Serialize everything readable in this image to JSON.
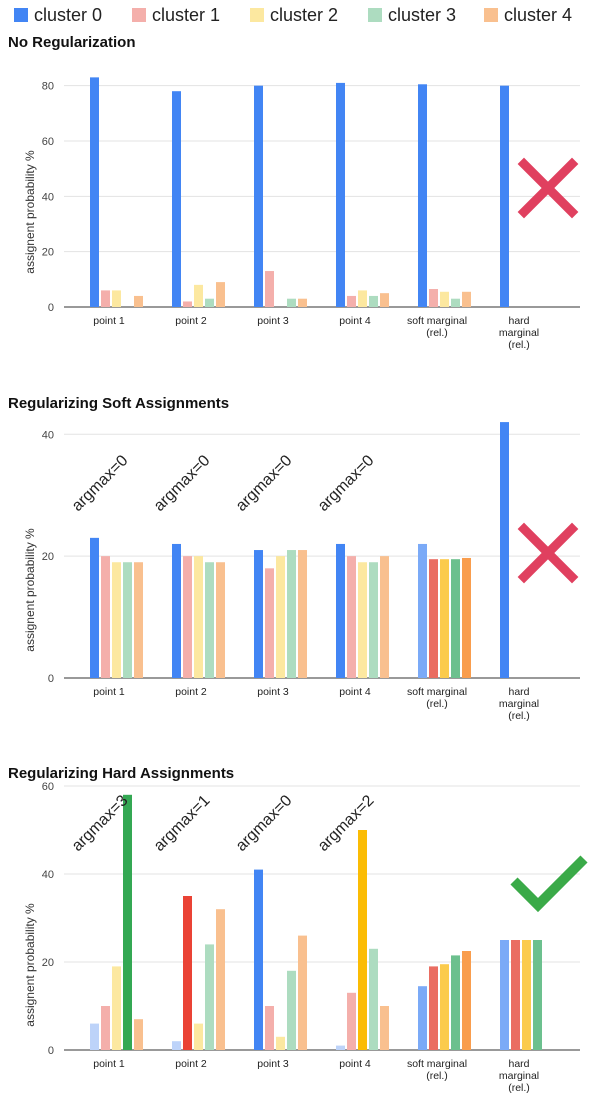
{
  "legend": [
    {
      "name": "cluster 0",
      "color": "#4285F4"
    },
    {
      "name": "cluster 1",
      "color": "#F4AFAB"
    },
    {
      "name": "cluster 2",
      "color": "#FCE8A0"
    },
    {
      "name": "cluster 3",
      "color": "#ADDCC0"
    },
    {
      "name": "cluster 4",
      "color": "#F9C08F"
    }
  ],
  "chart_data": [
    {
      "type": "bar",
      "title": "No Regularization",
      "ylabel": "assignent probability %",
      "ylim": [
        0,
        90
      ],
      "yticks": [
        0,
        20,
        40,
        60,
        80
      ],
      "categories": [
        [
          "point 1"
        ],
        [
          "point 2"
        ],
        [
          "point 3"
        ],
        [
          "point 4"
        ],
        [
          "soft marginal",
          "(rel.)"
        ],
        [
          "hard",
          "marginal",
          "(rel.)"
        ]
      ],
      "series": [
        {
          "name": "cluster 0",
          "values": [
            83,
            78,
            80,
            81,
            80.5,
            80
          ]
        },
        {
          "name": "cluster 1",
          "values": [
            6,
            2,
            13,
            4,
            6.5,
            0
          ]
        },
        {
          "name": "cluster 2",
          "values": [
            6,
            8,
            0,
            6,
            5.5,
            0
          ]
        },
        {
          "name": "cluster 3",
          "values": [
            0,
            3,
            3,
            4,
            3,
            0
          ]
        },
        {
          "name": "cluster 4",
          "values": [
            4,
            9,
            3,
            5,
            5.5,
            0
          ]
        }
      ],
      "colors": [
        [
          "#4285F4",
          "#F4AFAB",
          "#FCE8A0",
          "#ADDCC0",
          "#F9C08F"
        ],
        [
          "#4285F4",
          "#F4AFAB",
          "#FCE8A0",
          "#ADDCC0",
          "#F9C08F"
        ],
        [
          "#4285F4",
          "#F4AFAB",
          "#FCE8A0",
          "#ADDCC0",
          "#F9C08F"
        ],
        [
          "#4285F4",
          "#F4AFAB",
          "#FCE8A0",
          "#ADDCC0",
          "#F9C08F"
        ],
        [
          "#4285F4",
          "#F4AFAB",
          "#FCE8A0",
          "#ADDCC0",
          "#F9C08F"
        ],
        [
          "#4285F4",
          "#F4AFAB",
          "#FCE8A0",
          "#ADDCC0",
          "#F9C08F"
        ]
      ],
      "annotations": [],
      "marker": {
        "type": "cross",
        "color": "#E0405F"
      }
    },
    {
      "type": "bar",
      "title": "Regularizing Soft Assignments",
      "ylabel": "assignent probability %",
      "ylim": [
        0,
        43
      ],
      "yticks": [
        0,
        20,
        40
      ],
      "categories": [
        [
          "point 1"
        ],
        [
          "point 2"
        ],
        [
          "point 3"
        ],
        [
          "point 4"
        ],
        [
          "soft marginal",
          "(rel.)"
        ],
        [
          "hard",
          "marginal",
          "(rel.)"
        ]
      ],
      "series": [
        {
          "name": "cluster 0",
          "values": [
            23,
            22,
            21,
            22,
            22,
            42
          ]
        },
        {
          "name": "cluster 1",
          "values": [
            20,
            20,
            18,
            20,
            19.5,
            0
          ]
        },
        {
          "name": "cluster 2",
          "values": [
            19,
            20,
            20,
            19,
            19.5,
            0
          ]
        },
        {
          "name": "cluster 3",
          "values": [
            19,
            19,
            21,
            19,
            19.5,
            0
          ]
        },
        {
          "name": "cluster 4",
          "values": [
            19,
            19,
            21,
            20,
            19.7,
            0
          ]
        }
      ],
      "colors": [
        [
          "#4285F4",
          "#F4AFAB",
          "#FCE8A0",
          "#ADDCC0",
          "#F9C08F"
        ],
        [
          "#4285F4",
          "#F4AFAB",
          "#FCE8A0",
          "#ADDCC0",
          "#F9C08F"
        ],
        [
          "#4285F4",
          "#F4AFAB",
          "#FCE8A0",
          "#ADDCC0",
          "#F9C08F"
        ],
        [
          "#4285F4",
          "#F4AFAB",
          "#FCE8A0",
          "#ADDCC0",
          "#F9C08F"
        ],
        [
          "#7BAAF7",
          "#EA6D62",
          "#FBCB4C",
          "#6CC08E",
          "#F99D4D"
        ],
        [
          "#4285F4",
          "#F4AFAB",
          "#FCE8A0",
          "#ADDCC0",
          "#F9C08F"
        ]
      ],
      "annotations": [
        "argmax=0",
        "argmax=0",
        "argmax=0",
        "argmax=0"
      ],
      "marker": {
        "type": "cross",
        "color": "#E0405F"
      }
    },
    {
      "type": "bar",
      "title": "Regularizing Hard Assignments",
      "ylabel": "assignent probability %",
      "ylim": [
        0,
        60
      ],
      "yticks": [
        0,
        20,
        40,
        60
      ],
      "categories": [
        [
          "point 1"
        ],
        [
          "point 2"
        ],
        [
          "point 3"
        ],
        [
          "point 4"
        ],
        [
          "soft marginal",
          "(rel.)"
        ],
        [
          "hard",
          "marginal",
          "(rel.)"
        ]
      ],
      "series": [
        {
          "name": "cluster 0",
          "values": [
            6,
            2,
            41,
            1,
            14.5,
            25
          ]
        },
        {
          "name": "cluster 1",
          "values": [
            10,
            35,
            10,
            13,
            19,
            25
          ]
        },
        {
          "name": "cluster 2",
          "values": [
            19,
            6,
            3,
            50,
            19.5,
            25
          ]
        },
        {
          "name": "cluster 3",
          "values": [
            58,
            24,
            18,
            23,
            21.5,
            25
          ]
        },
        {
          "name": "cluster 4",
          "values": [
            7,
            32,
            26,
            10,
            22.5,
            0
          ]
        }
      ],
      "colors": [
        [
          "#BDD3F9",
          "#F4AFAB",
          "#FCE8A0",
          "#34A853",
          "#F9C08F"
        ],
        [
          "#BDD3F9",
          "#EA4335",
          "#FCE8A0",
          "#ADDCC0",
          "#F9C08F"
        ],
        [
          "#4285F4",
          "#F4AFAB",
          "#FCE8A0",
          "#ADDCC0",
          "#F9C08F"
        ],
        [
          "#BDD3F9",
          "#F4AFAB",
          "#FBBC04",
          "#ADDCC0",
          "#F9C08F"
        ],
        [
          "#7BAAF7",
          "#EA6D62",
          "#FBCB4C",
          "#6CC08E",
          "#F99D4D"
        ],
        [
          "#7BAAF7",
          "#EA6D62",
          "#FBCB4C",
          "#6CC08E",
          "#F99D4D"
        ]
      ],
      "annotations": [
        "argmax=3",
        "argmax=1",
        "argmax=0",
        "argmax=2"
      ],
      "marker": {
        "type": "check",
        "color": "#3AAA48"
      }
    }
  ]
}
